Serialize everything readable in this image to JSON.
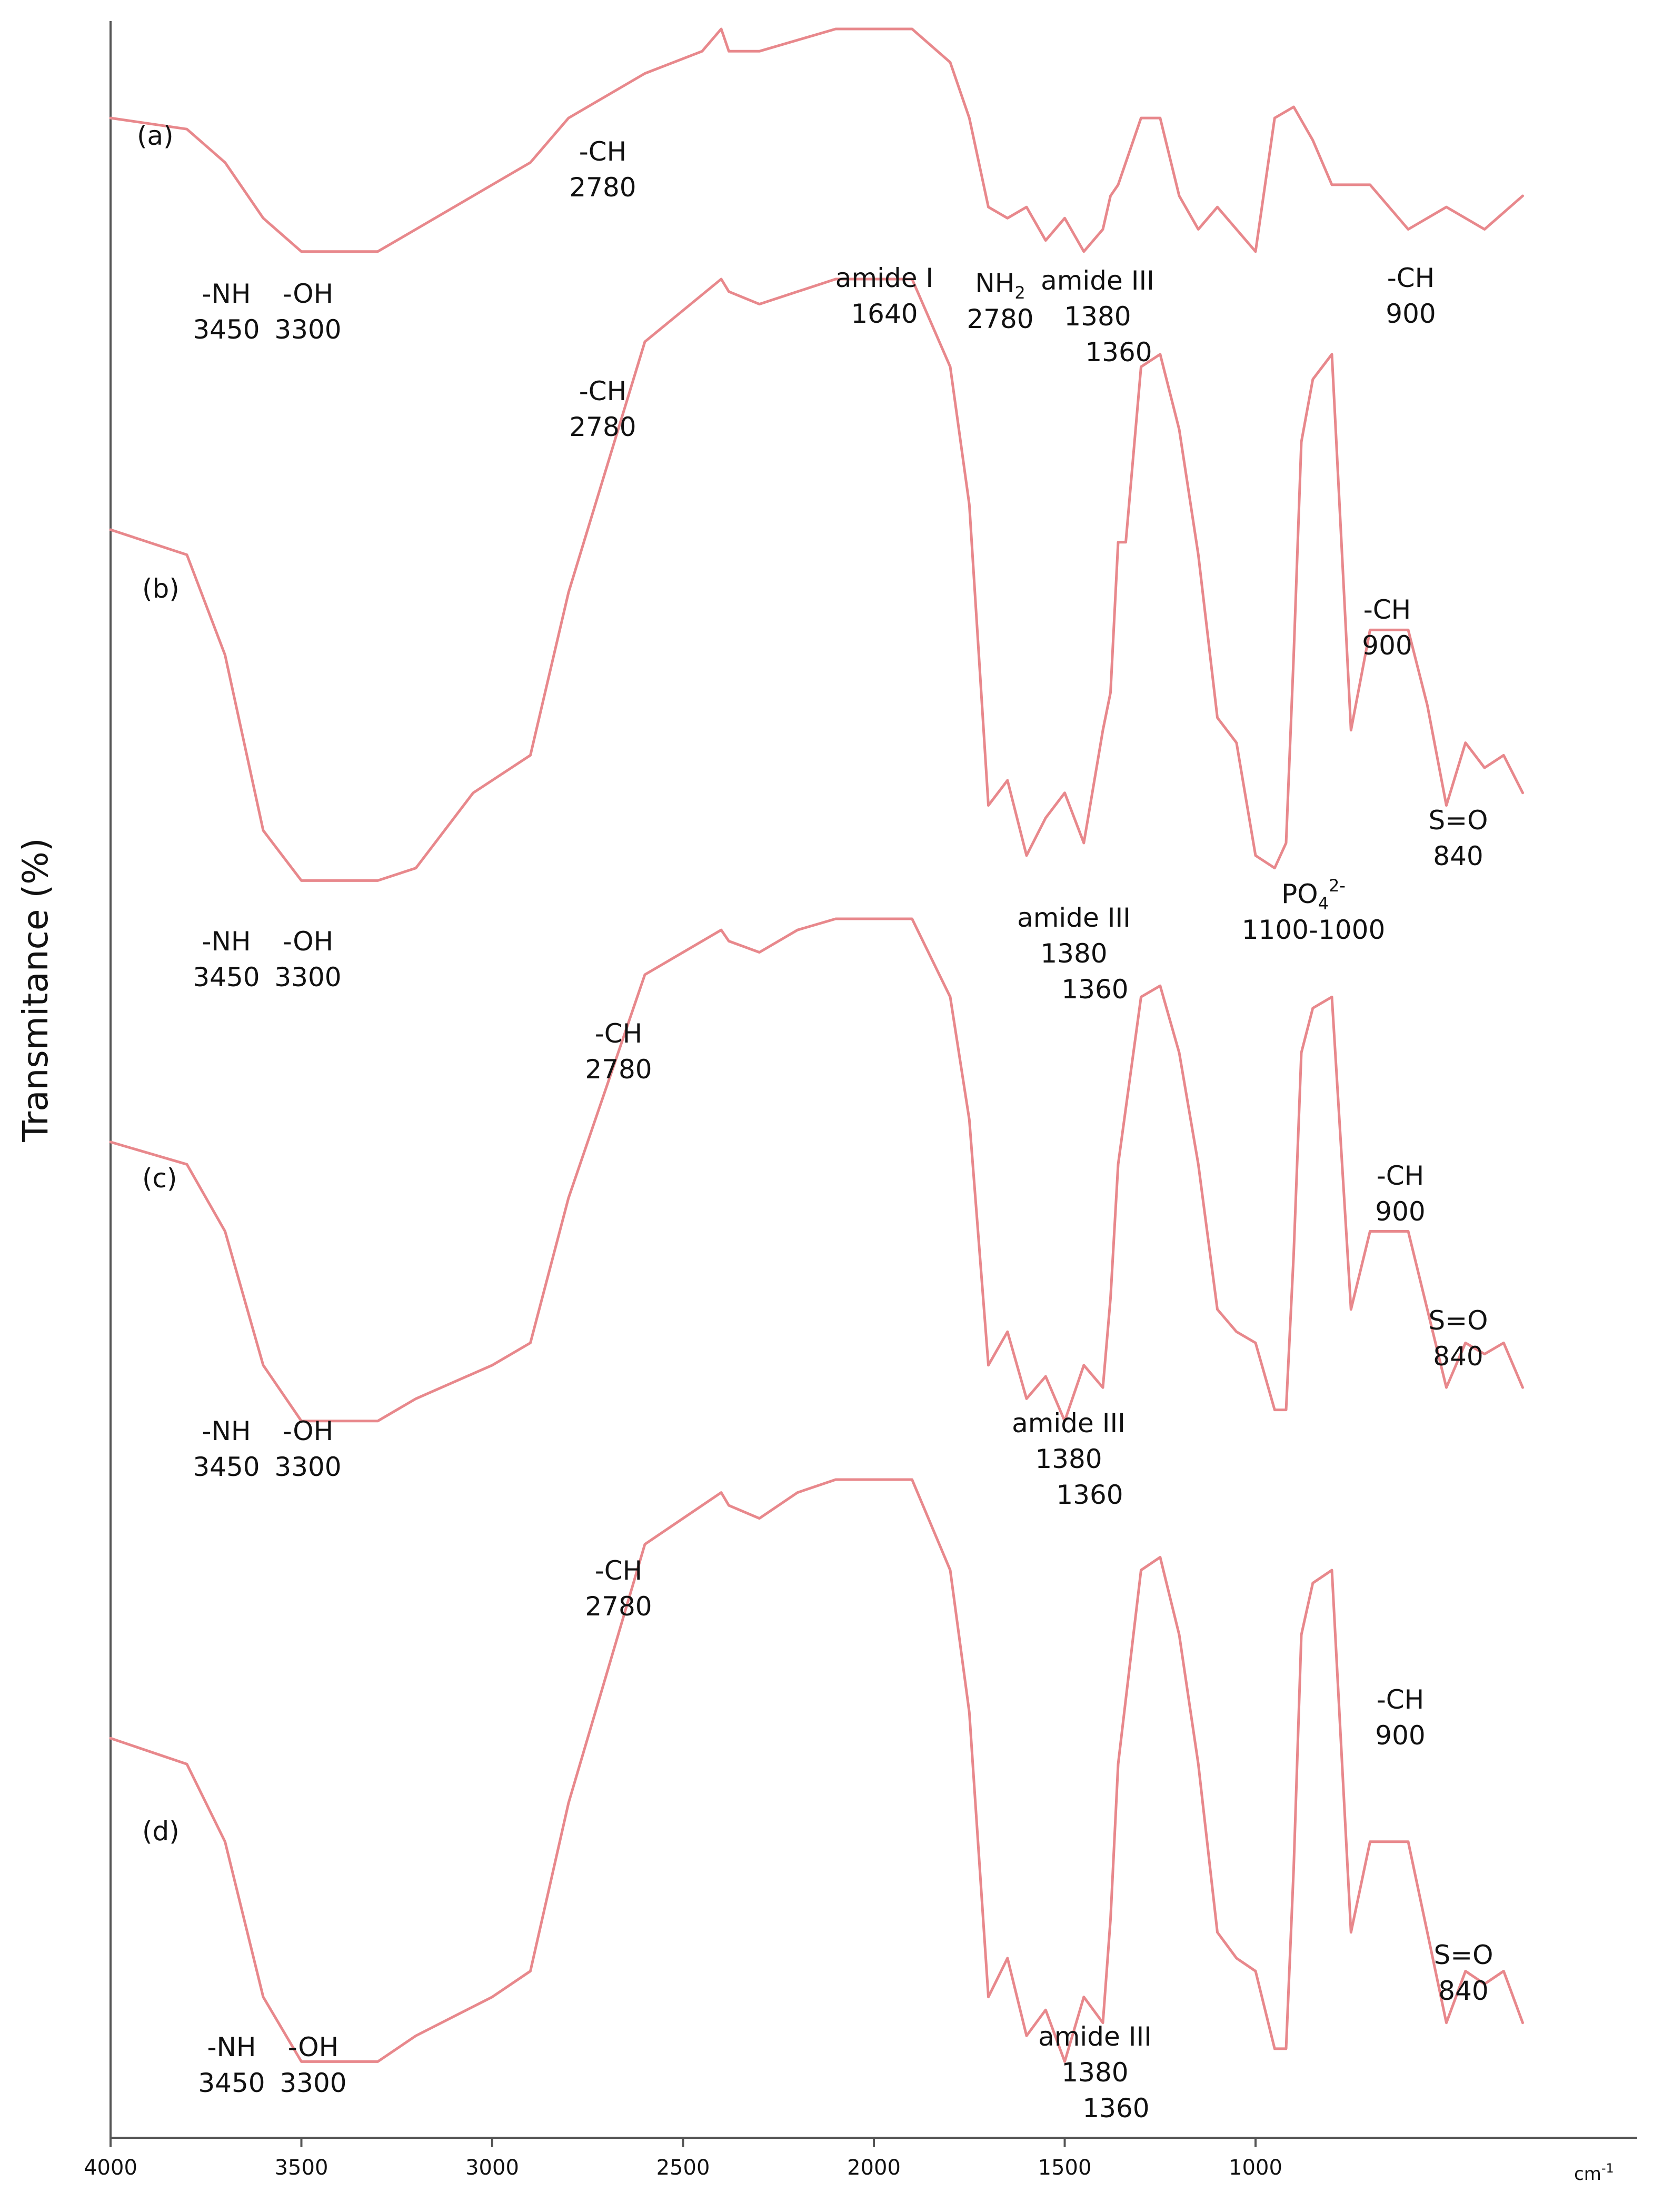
{
  "chart_data": {
    "type": "line",
    "title": "",
    "xlabel": "",
    "x_unit": "cm",
    "x_unit_exp": "-1",
    "ylabel": "Transmitance (%)",
    "xlim": [
      4000,
      0
    ],
    "x_ticks": [
      4000,
      3500,
      3000,
      2500,
      2000,
      1500,
      1000
    ],
    "ylim": [
      0,
      100
    ],
    "line_color": "#e8888c",
    "series": [
      {
        "name": "(a)",
        "x": [
          4000,
          3800,
          3700,
          3600,
          3500,
          3400,
          3300,
          3200,
          3000,
          2900,
          2800,
          2600,
          2450,
          2400,
          2380,
          2300,
          2200,
          2100,
          2000,
          1900,
          1800,
          1750,
          1700,
          1650,
          1600,
          1550,
          1500,
          1450,
          1400,
          1380,
          1360,
          1300,
          1250,
          1200,
          1150,
          1100,
          1000,
          950,
          900,
          850,
          800,
          700,
          600,
          500,
          400,
          300
        ],
        "y": [
          92,
          91,
          88,
          83,
          80,
          80,
          80,
          82,
          86,
          88,
          92,
          96,
          98,
          100,
          98,
          98,
          99,
          100,
          100,
          100,
          97,
          92,
          84,
          83,
          84,
          81,
          83,
          80,
          82,
          85,
          86,
          92,
          92,
          85,
          82,
          84,
          80,
          92,
          93,
          90,
          86,
          86,
          82,
          84,
          82,
          85
        ]
      },
      {
        "name": "(b)",
        "x": [
          4000,
          3800,
          3700,
          3600,
          3500,
          3400,
          3300,
          3200,
          3050,
          2950,
          2900,
          2800,
          2600,
          2400,
          2380,
          2300,
          2200,
          2100,
          2000,
          1900,
          1800,
          1750,
          1700,
          1650,
          1600,
          1550,
          1500,
          1450,
          1400,
          1380,
          1360,
          1340,
          1300,
          1250,
          1200,
          1150,
          1100,
          1050,
          1000,
          950,
          920,
          900,
          880,
          850,
          800,
          750,
          700,
          600,
          550,
          500,
          450,
          400,
          350,
          300
        ],
        "y": [
          80,
          78,
          70,
          56,
          52,
          52,
          52,
          53,
          59,
          61,
          62,
          75,
          95,
          100,
          99,
          98,
          99,
          100,
          100,
          100,
          93,
          82,
          58,
          60,
          54,
          57,
          59,
          55,
          64,
          67,
          79,
          79,
          93,
          94,
          88,
          78,
          65,
          63,
          54,
          53,
          55,
          70,
          87,
          92,
          94,
          64,
          72,
          72,
          66,
          58,
          63,
          61,
          62,
          59
        ]
      },
      {
        "name": "(c)",
        "x": [
          4000,
          3800,
          3700,
          3600,
          3500,
          3400,
          3300,
          3200,
          3000,
          2900,
          2800,
          2600,
          2400,
          2380,
          2300,
          2200,
          2100,
          2000,
          1900,
          1800,
          1750,
          1700,
          1650,
          1600,
          1550,
          1500,
          1450,
          1400,
          1380,
          1360,
          1300,
          1250,
          1200,
          1150,
          1100,
          1050,
          1000,
          950,
          920,
          900,
          880,
          850,
          800,
          750,
          700,
          600,
          550,
          500,
          450,
          400,
          350,
          300
        ],
        "y": [
          80,
          78,
          72,
          60,
          55,
          55,
          55,
          57,
          60,
          62,
          75,
          95,
          99,
          98,
          97,
          99,
          100,
          100,
          100,
          93,
          82,
          60,
          63,
          57,
          59,
          55,
          60,
          58,
          66,
          78,
          93,
          94,
          88,
          78,
          65,
          63,
          62,
          56,
          56,
          70,
          88,
          92,
          93,
          65,
          72,
          72,
          65,
          58,
          62,
          61,
          62,
          58
        ]
      },
      {
        "name": "(d)",
        "x": [
          4000,
          3800,
          3700,
          3600,
          3500,
          3400,
          3300,
          3200,
          3000,
          2900,
          2800,
          2600,
          2400,
          2380,
          2300,
          2200,
          2100,
          2000,
          1900,
          1800,
          1750,
          1700,
          1650,
          1600,
          1550,
          1500,
          1450,
          1400,
          1380,
          1360,
          1300,
          1250,
          1200,
          1150,
          1100,
          1050,
          1000,
          950,
          920,
          900,
          880,
          850,
          800,
          750,
          700,
          600,
          550,
          500,
          450,
          400,
          350,
          300
        ],
        "y": [
          80,
          78,
          72,
          60,
          55,
          55,
          55,
          57,
          60,
          62,
          75,
          95,
          99,
          98,
          97,
          99,
          100,
          100,
          100,
          93,
          82,
          60,
          63,
          57,
          59,
          55,
          60,
          58,
          66,
          78,
          93,
          94,
          88,
          78,
          65,
          63,
          62,
          56,
          56,
          70,
          88,
          92,
          93,
          65,
          72,
          72,
          65,
          58,
          62,
          61,
          62,
          58
        ]
      }
    ],
    "panel_labels": [
      "(a)",
      "(b)",
      "(c)",
      "(d)"
    ],
    "annotations": [
      {
        "panel": "(a)",
        "line1": "-NH",
        "line2": "3450"
      },
      {
        "panel": "(a)",
        "line1": "-OH",
        "line2": "3300"
      },
      {
        "panel": "(a)",
        "line1": "-CH",
        "line2": "2780"
      },
      {
        "panel": "(a)",
        "line1": "amide I",
        "line2": "1640"
      },
      {
        "panel": "(a)",
        "line1": "NH",
        "line1_sub": "2",
        "line2": "2780"
      },
      {
        "panel": "(a)",
        "line1": "amide III",
        "line2": "1380",
        "line3": "1360"
      },
      {
        "panel": "(a)",
        "line1": "-CH",
        "line2": "900"
      },
      {
        "panel": "(b)",
        "line1": "-CH",
        "line2": "2780"
      },
      {
        "panel": "(b)",
        "line1": "-NH",
        "line2": "3450"
      },
      {
        "panel": "(b)",
        "line1": "-OH",
        "line2": "3300"
      },
      {
        "panel": "(b)",
        "line1": "amide III",
        "line2": "1380",
        "line3": "1360"
      },
      {
        "panel": "(b)",
        "line1": "PO",
        "line1_sub": "4",
        "line1_sup": "2-",
        "line2": "1100-1000"
      },
      {
        "panel": "(b)",
        "line1": "-CH",
        "line2": "900"
      },
      {
        "panel": "(b)",
        "line1": "S=O",
        "line2": "840"
      },
      {
        "panel": "(c)",
        "line1": "-CH",
        "line2": "2780"
      },
      {
        "panel": "(c)",
        "line1": "-NH",
        "line2": "3450"
      },
      {
        "panel": "(c)",
        "line1": "-OH",
        "line2": "3300"
      },
      {
        "panel": "(c)",
        "line1": "amide III",
        "line2": "1380",
        "line3": "1360"
      },
      {
        "panel": "(c)",
        "line1": "-CH",
        "line2": "900"
      },
      {
        "panel": "(c)",
        "line1": "S=O",
        "line2": "840"
      },
      {
        "panel": "(d)",
        "line1": "-CH",
        "line2": "2780"
      },
      {
        "panel": "(d)",
        "line1": "-NH",
        "line2": "3450"
      },
      {
        "panel": "(d)",
        "line1": "-OH",
        "line2": "3300"
      },
      {
        "panel": "(d)",
        "line1": "amide III",
        "line2": "1380",
        "line3": "1360"
      },
      {
        "panel": "(d)",
        "line1": "-CH",
        "line2": "900"
      },
      {
        "panel": "(d)",
        "line1": "S=O",
        "line2": "840"
      }
    ]
  }
}
